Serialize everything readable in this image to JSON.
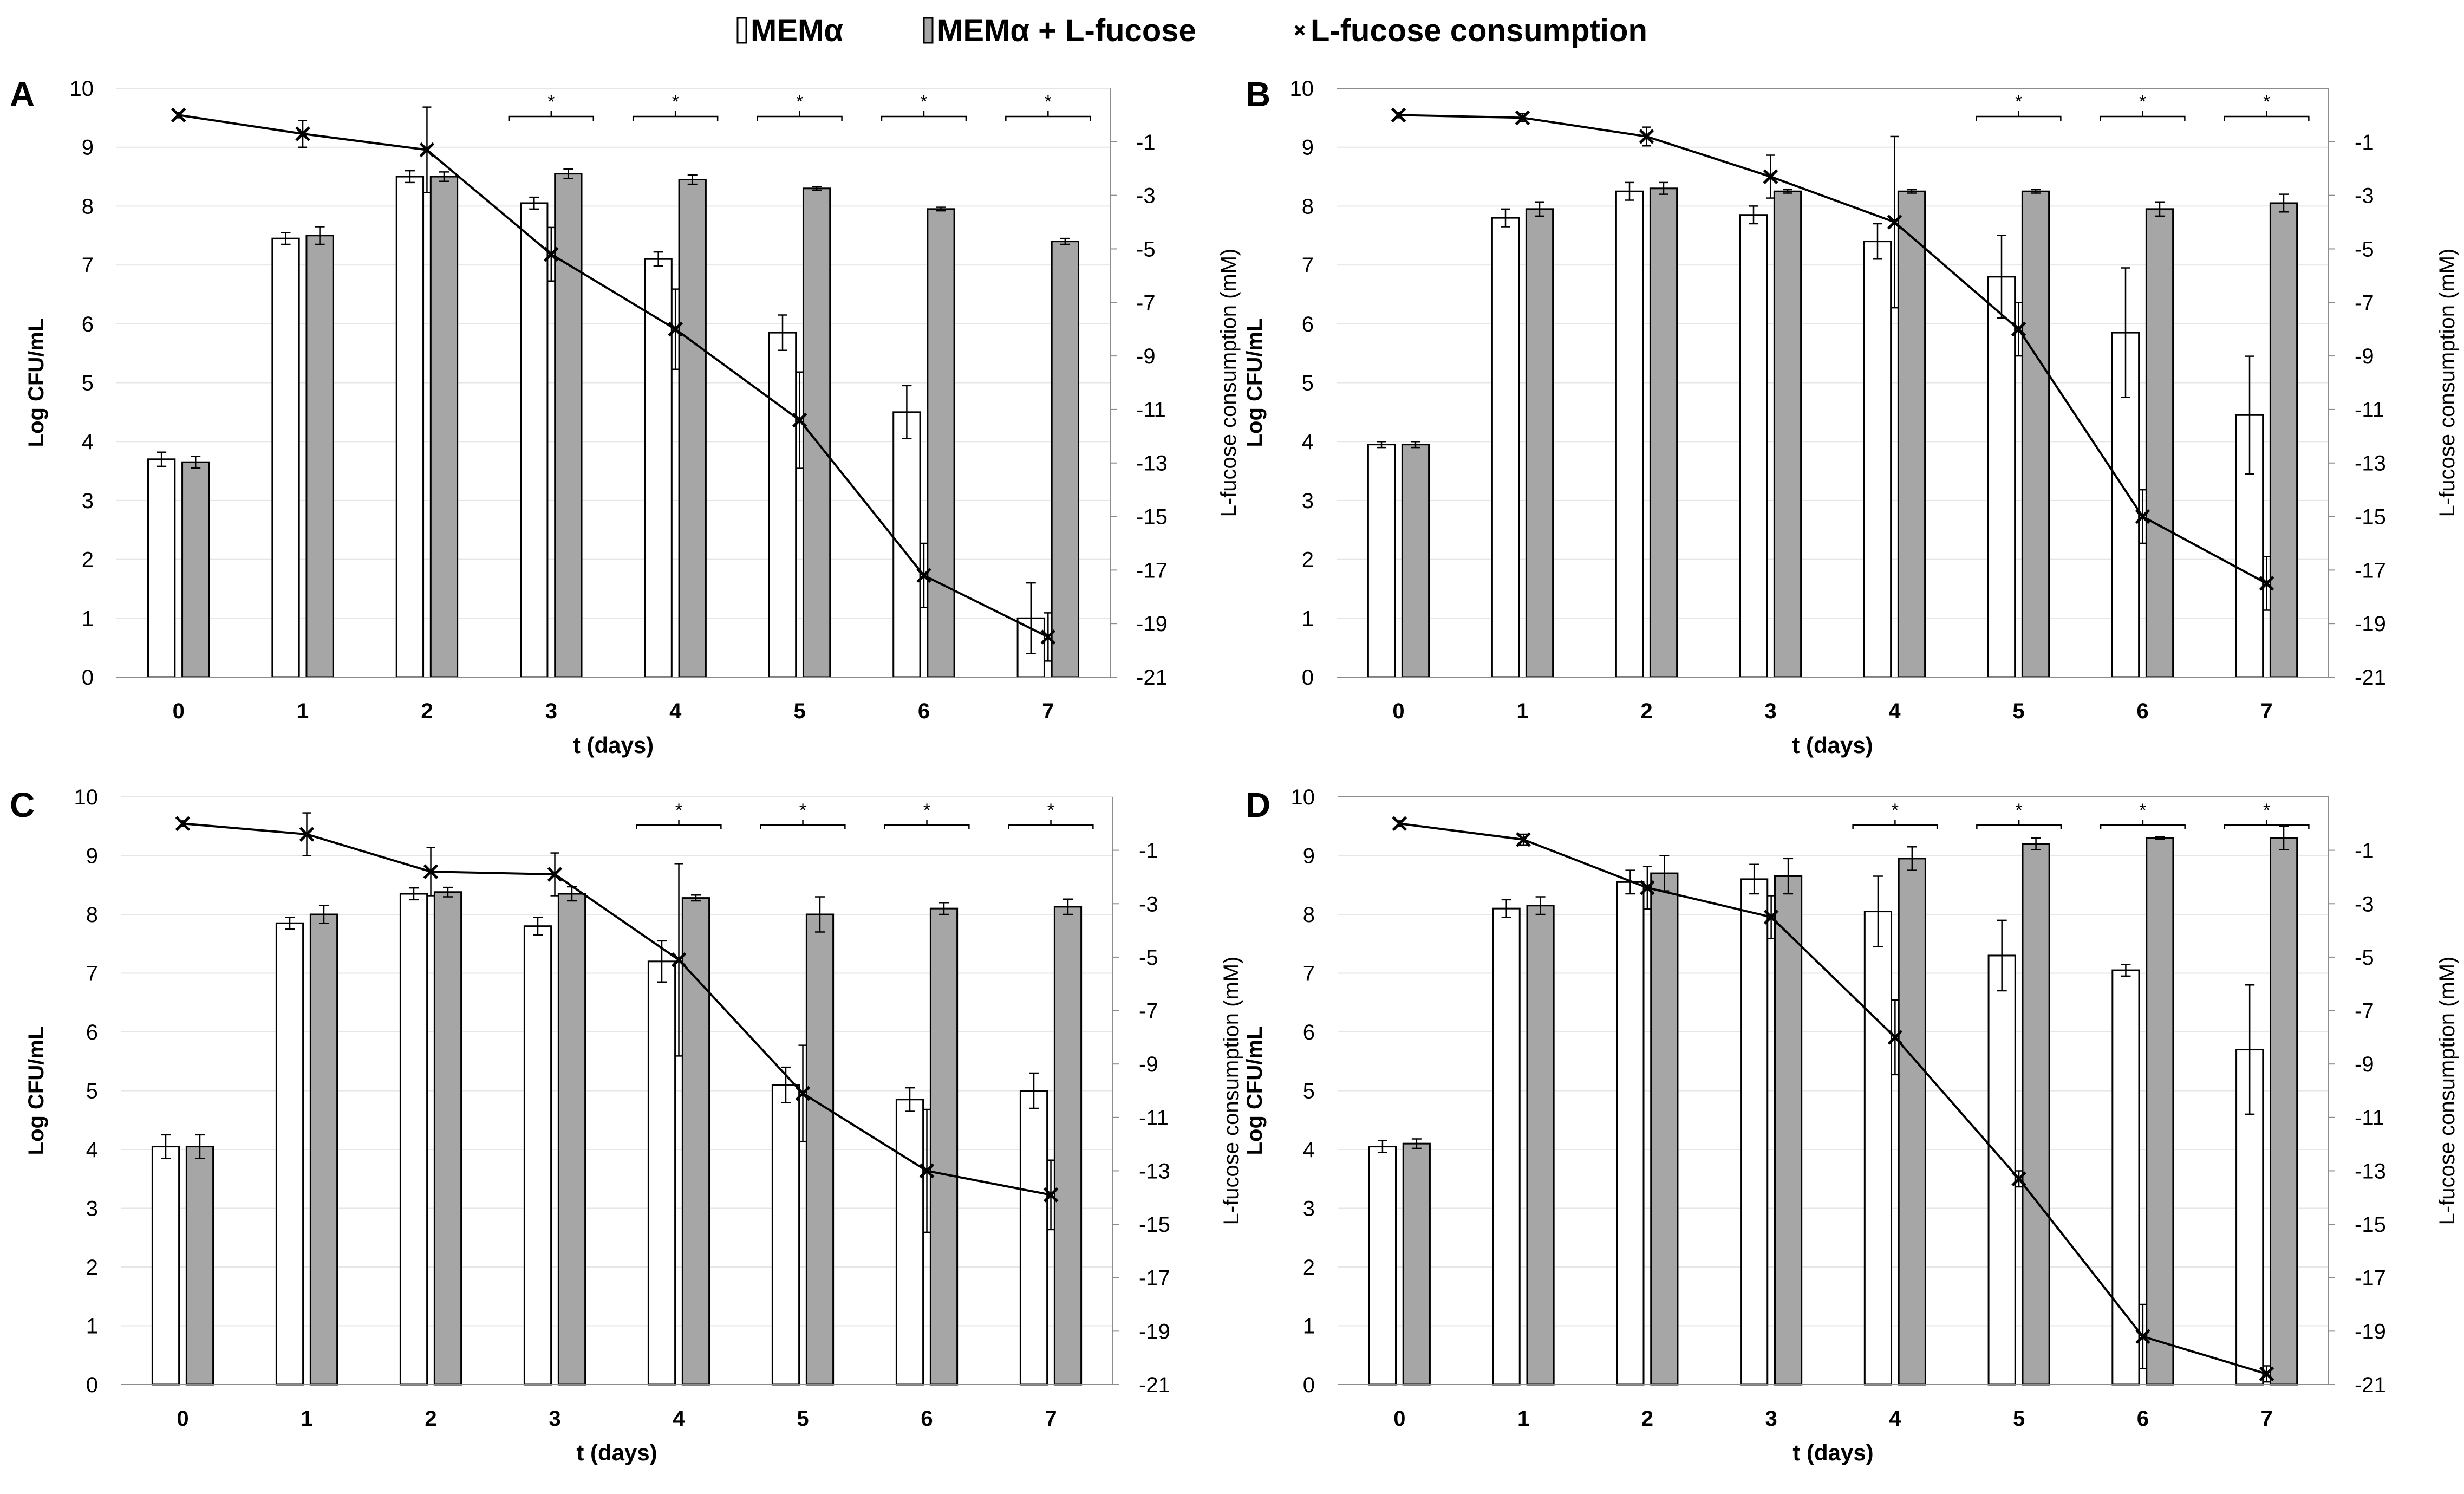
{
  "legend": {
    "items": [
      {
        "label": "MEMα",
        "color": "#ffffff"
      },
      {
        "label": "MEMα + L-fucose",
        "color": "#a6a6a6"
      },
      {
        "label": "L-fucose consumption",
        "color": "#000000"
      }
    ]
  },
  "colors": {
    "bar_open": "#ffffff",
    "bar_fucose": "#a6a6a6",
    "stroke": "#000000",
    "gridline": "#e6e6e6"
  },
  "chart_data": [
    {
      "panel": "A",
      "type": "bar+line",
      "categories": [
        "0",
        "1",
        "2",
        "3",
        "4",
        "5",
        "6",
        "7"
      ],
      "xlabel": "t (days)",
      "ylabel": "Log CFU/mL",
      "y2label": "L-fucose consumption (mM)",
      "ylim": [
        0,
        10
      ],
      "y2lim": [
        -21,
        1
      ],
      "yticks": [
        "0",
        "1",
        "2",
        "3",
        "4",
        "5",
        "6",
        "7",
        "8",
        "9",
        "10"
      ],
      "y2ticks": [
        "-1",
        "-3",
        "-5",
        "-7",
        "-9",
        "-11",
        "-13",
        "-15",
        "-17",
        "-19",
        "-21"
      ],
      "series": [
        {
          "name": "MEMα",
          "values": [
            3.7,
            7.45,
            8.5,
            8.05,
            7.1,
            5.85,
            4.5,
            1.0
          ],
          "errors": [
            0.12,
            0.1,
            0.1,
            0.1,
            0.12,
            0.3,
            0.45,
            0.6
          ]
        },
        {
          "name": "MEMα + L-fucose",
          "values": [
            3.65,
            7.5,
            8.5,
            8.55,
            8.45,
            8.3,
            7.95,
            7.4
          ],
          "errors": [
            0.1,
            0.15,
            0.08,
            0.08,
            0.08,
            0.03,
            0.03,
            0.05
          ]
        },
        {
          "name": "L-fucose consumption",
          "values": [
            0,
            -0.7,
            -1.3,
            -5.2,
            -8.0,
            -11.4,
            -17.2,
            -19.5
          ],
          "errors": [
            0.1,
            0.5,
            1.6,
            1.0,
            1.5,
            1.8,
            1.2,
            0.9
          ]
        }
      ],
      "significance": [
        "",
        "",
        "",
        "*",
        "*",
        "*",
        "*",
        "*"
      ]
    },
    {
      "panel": "B",
      "type": "bar+line",
      "categories": [
        "0",
        "1",
        "2",
        "3",
        "4",
        "5",
        "6",
        "7"
      ],
      "xlabel": "t (days)",
      "ylabel": "Log CFU/mL",
      "y2label": "L-fucose consumption (mM)",
      "ylim": [
        0,
        10
      ],
      "y2lim": [
        -21,
        1
      ],
      "yticks": [
        "0",
        "1",
        "2",
        "3",
        "4",
        "5",
        "6",
        "7",
        "8",
        "9",
        "10"
      ],
      "y2ticks": [
        "-1",
        "-3",
        "-5",
        "-7",
        "-9",
        "-11",
        "-13",
        "-15",
        "-17",
        "-19",
        "-21"
      ],
      "series": [
        {
          "name": "MEMα",
          "values": [
            3.95,
            7.8,
            8.25,
            7.85,
            7.4,
            6.8,
            5.85,
            4.45
          ],
          "errors": [
            0.05,
            0.15,
            0.15,
            0.15,
            0.3,
            0.7,
            1.1,
            1.0
          ]
        },
        {
          "name": "MEMα + L-fucose",
          "values": [
            3.95,
            7.95,
            8.3,
            8.25,
            8.25,
            8.25,
            7.95,
            8.05
          ],
          "errors": [
            0.05,
            0.12,
            0.1,
            0.03,
            0.03,
            0.03,
            0.12,
            0.15
          ]
        },
        {
          "name": "L-fucose consumption",
          "values": [
            0,
            -0.1,
            -0.8,
            -2.3,
            -4.0,
            -8.0,
            -15.0,
            -17.5
          ],
          "errors": [
            0.1,
            0.15,
            0.35,
            0.8,
            3.2,
            1.0,
            1.0,
            1.0
          ]
        }
      ],
      "significance": [
        "",
        "",
        "",
        "",
        "",
        "*",
        "*",
        "*"
      ]
    },
    {
      "panel": "C",
      "type": "bar+line",
      "categories": [
        "0",
        "1",
        "2",
        "3",
        "4",
        "5",
        "6",
        "7"
      ],
      "xlabel": "t (days)",
      "ylabel": "Log CFU/mL",
      "y2label": "L-fucose consumption (mM)",
      "ylim": [
        0,
        10
      ],
      "y2lim": [
        -21,
        1
      ],
      "yticks": [
        "0",
        "1",
        "2",
        "3",
        "4",
        "5",
        "6",
        "7",
        "8",
        "9",
        "10"
      ],
      "y2ticks": [
        "-1",
        "-3",
        "-5",
        "-7",
        "-9",
        "-11",
        "-13",
        "-15",
        "-17",
        "-19",
        "-21"
      ],
      "series": [
        {
          "name": "MEMα",
          "values": [
            4.05,
            7.85,
            8.35,
            7.8,
            7.2,
            5.1,
            4.85,
            5.0
          ],
          "errors": [
            0.2,
            0.1,
            0.1,
            0.15,
            0.35,
            0.3,
            0.2,
            0.3
          ]
        },
        {
          "name": "MEMα + L-fucose",
          "values": [
            4.05,
            8.0,
            8.38,
            8.35,
            8.28,
            8.0,
            8.1,
            8.13
          ],
          "errors": [
            0.2,
            0.15,
            0.08,
            0.12,
            0.05,
            0.3,
            0.1,
            0.13
          ]
        },
        {
          "name": "L-fucose consumption",
          "values": [
            0,
            -0.4,
            -1.8,
            -1.9,
            -5.1,
            -10.1,
            -13.0,
            -13.9
          ],
          "errors": [
            0.1,
            0.8,
            0.9,
            0.8,
            3.6,
            1.8,
            2.3,
            1.3
          ]
        }
      ],
      "significance": [
        "",
        "",
        "",
        "",
        "*",
        "*",
        "*",
        "*"
      ]
    },
    {
      "panel": "D",
      "type": "bar+line",
      "categories": [
        "0",
        "1",
        "2",
        "3",
        "4",
        "5",
        "6",
        "7"
      ],
      "xlabel": "t (days)",
      "ylabel": "Log CFU/mL",
      "y2label": "L-fucose consumption (mM)",
      "ylim": [
        0,
        10
      ],
      "y2lim": [
        -21,
        1
      ],
      "yticks": [
        "0",
        "1",
        "2",
        "3",
        "4",
        "5",
        "6",
        "7",
        "8",
        "9",
        "10"
      ],
      "y2ticks": [
        "-1",
        "-3",
        "-5",
        "-7",
        "-9",
        "-11",
        "-13",
        "-15",
        "-17",
        "-19",
        "-21"
      ],
      "series": [
        {
          "name": "MEMα",
          "values": [
            4.05,
            8.1,
            8.55,
            8.6,
            8.05,
            7.3,
            7.05,
            5.7
          ],
          "errors": [
            0.1,
            0.15,
            0.2,
            0.25,
            0.6,
            0.6,
            0.1,
            1.1
          ]
        },
        {
          "name": "MEMα + L-fucose",
          "values": [
            4.1,
            8.15,
            8.7,
            8.65,
            8.95,
            9.2,
            9.3,
            9.3
          ],
          "errors": [
            0.08,
            0.15,
            0.3,
            0.3,
            0.2,
            0.1,
            0.02,
            0.2
          ]
        },
        {
          "name": "L-fucose consumption",
          "values": [
            0,
            -0.6,
            -2.4,
            -3.5,
            -8.0,
            -13.3,
            -19.2,
            -20.6
          ],
          "errors": [
            0.1,
            0.2,
            0.8,
            0.8,
            1.4,
            0.3,
            1.2,
            0.3
          ]
        }
      ],
      "significance": [
        "",
        "",
        "",
        "",
        "*",
        "*",
        "*",
        "*"
      ]
    }
  ]
}
